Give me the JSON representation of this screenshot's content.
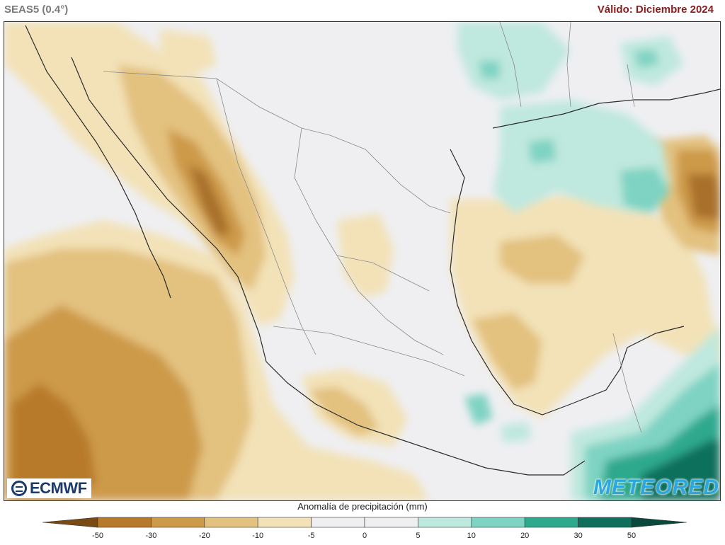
{
  "header": {
    "model": "SEAS5 (0.4°)",
    "valid": "Válido: Diciembre 2024"
  },
  "logos": {
    "left": "ECMWF",
    "right": "METEORED"
  },
  "legend": {
    "title": "Anomalía de precipitación (mm)",
    "unit": "mm",
    "bins": [
      {
        "from": -50,
        "to": -30,
        "color": "#b77a2a"
      },
      {
        "from": -30,
        "to": -20,
        "color": "#cd9a4a"
      },
      {
        "from": -20,
        "to": -10,
        "color": "#e3c17f"
      },
      {
        "from": -10,
        "to": -5,
        "color": "#f3e2b8"
      },
      {
        "from": -5,
        "to": 0,
        "color": "#efeff2"
      },
      {
        "from": 0,
        "to": 5,
        "color": "#efeff2"
      },
      {
        "from": 5,
        "to": 10,
        "color": "#bfe8de"
      },
      {
        "from": 10,
        "to": 20,
        "color": "#7ed3c2"
      },
      {
        "from": 20,
        "to": 30,
        "color": "#2ea98e"
      },
      {
        "from": 30,
        "to": 50,
        "color": "#0d6f5c"
      }
    ],
    "under_color": "#7a4a14",
    "over_color": "#0a4a3c",
    "ticks": [
      "-50",
      "-30",
      "-20",
      "-10",
      "-5",
      "0",
      "5",
      "10",
      "20",
      "30",
      "50"
    ]
  }
}
